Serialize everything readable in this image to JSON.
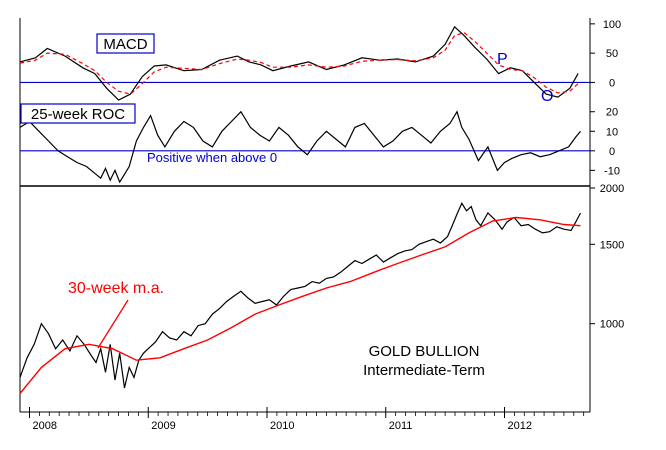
{
  "chart_data": [
    {
      "type": "line",
      "title": "MACD",
      "ylim": [
        -30,
        110
      ],
      "yticks": [
        100,
        50,
        0
      ],
      "zero_line": 0,
      "annotations": [
        "P",
        "O"
      ],
      "series": [
        {
          "name": "MACD",
          "color": "#000000",
          "style": "solid",
          "x": [
            2007.92,
            2008.05,
            2008.15,
            2008.3,
            2008.45,
            2008.55,
            2008.65,
            2008.75,
            2008.85,
            2008.95,
            2009.05,
            2009.15,
            2009.3,
            2009.45,
            2009.6,
            2009.75,
            2009.85,
            2009.95,
            2010.05,
            2010.2,
            2010.35,
            2010.5,
            2010.65,
            2010.8,
            2010.95,
            2011.1,
            2011.25,
            2011.4,
            2011.5,
            2011.58,
            2011.66,
            2011.75,
            2011.85,
            2011.95,
            2012.05,
            2012.15,
            2012.25,
            2012.35,
            2012.45,
            2012.55,
            2012.62
          ],
          "values": [
            35,
            42,
            58,
            45,
            25,
            15,
            -10,
            -30,
            -20,
            10,
            28,
            30,
            20,
            22,
            38,
            45,
            35,
            30,
            20,
            28,
            35,
            22,
            30,
            42,
            38,
            40,
            35,
            45,
            65,
            95,
            80,
            60,
            40,
            15,
            25,
            20,
            0,
            -20,
            -25,
            -10,
            15
          ]
        },
        {
          "name": "Signal",
          "color": "#ff0000",
          "style": "dashed",
          "x": [
            2007.92,
            2008.05,
            2008.15,
            2008.3,
            2008.45,
            2008.55,
            2008.65,
            2008.75,
            2008.85,
            2008.95,
            2009.05,
            2009.15,
            2009.3,
            2009.45,
            2009.6,
            2009.75,
            2009.85,
            2009.95,
            2010.05,
            2010.2,
            2010.35,
            2010.5,
            2010.65,
            2010.8,
            2010.95,
            2011.1,
            2011.25,
            2011.4,
            2011.5,
            2011.58,
            2011.66,
            2011.75,
            2011.85,
            2011.95,
            2012.05,
            2012.15,
            2012.25,
            2012.35,
            2012.45,
            2012.55,
            2012.62
          ],
          "values": [
            33,
            38,
            50,
            48,
            32,
            20,
            0,
            -15,
            -20,
            -2,
            18,
            26,
            24,
            22,
            32,
            40,
            38,
            34,
            26,
            26,
            30,
            26,
            28,
            36,
            38,
            39,
            37,
            42,
            55,
            80,
            85,
            70,
            50,
            30,
            22,
            20,
            8,
            -8,
            -18,
            -15,
            -2
          ]
        }
      ]
    },
    {
      "type": "line",
      "title": "25-week ROC",
      "ylim": [
        -18,
        26
      ],
      "yticks": [
        20,
        10,
        0,
        -10
      ],
      "zero_line": 0,
      "annotations": [
        "Positive when above 0"
      ],
      "series": [
        {
          "name": "25-week ROC",
          "color": "#000000",
          "style": "solid",
          "x": [
            2007.92,
            2008.0,
            2008.08,
            2008.16,
            2008.24,
            2008.32,
            2008.4,
            2008.48,
            2008.56,
            2008.6,
            2008.64,
            2008.68,
            2008.72,
            2008.76,
            2008.8,
            2008.84,
            2008.9,
            2008.96,
            2009.02,
            2009.08,
            2009.14,
            2009.22,
            2009.3,
            2009.38,
            2009.46,
            2009.54,
            2009.62,
            2009.7,
            2009.78,
            2009.86,
            2009.94,
            2010.02,
            2010.1,
            2010.18,
            2010.26,
            2010.34,
            2010.42,
            2010.5,
            2010.58,
            2010.66,
            2010.74,
            2010.82,
            2010.9,
            2010.98,
            2011.06,
            2011.14,
            2011.22,
            2011.3,
            2011.38,
            2011.46,
            2011.54,
            2011.6,
            2011.64,
            2011.7,
            2011.78,
            2011.86,
            2011.94,
            2012.0,
            2012.06,
            2012.14,
            2012.22,
            2012.3,
            2012.38,
            2012.46,
            2012.54,
            2012.6,
            2012.64
          ],
          "values": [
            12,
            15,
            10,
            5,
            0,
            -3,
            -6,
            -8,
            -12,
            -14,
            -9,
            -15,
            -10,
            -16,
            -12,
            -8,
            5,
            12,
            18,
            8,
            2,
            10,
            15,
            12,
            5,
            2,
            10,
            15,
            20,
            12,
            8,
            5,
            12,
            8,
            2,
            -2,
            5,
            10,
            6,
            2,
            12,
            14,
            8,
            2,
            5,
            10,
            12,
            8,
            4,
            10,
            14,
            20,
            12,
            6,
            -5,
            2,
            -10,
            -6,
            -4,
            -2,
            -1,
            -3,
            -2,
            0,
            2,
            7,
            10
          ]
        }
      ]
    },
    {
      "type": "line",
      "title": "GOLD BULLION Intermediate-Term",
      "ylim": [
        650,
        2000
      ],
      "yticks": [
        2000,
        1500,
        1000
      ],
      "xticks": [
        "2008",
        "2009",
        "2010",
        "2011",
        "2012"
      ],
      "annotations": [
        "30-week m.a."
      ],
      "series": [
        {
          "name": "Gold",
          "color": "#000000",
          "style": "solid",
          "x": [
            2007.92,
            2007.98,
            2008.04,
            2008.1,
            2008.16,
            2008.22,
            2008.28,
            2008.34,
            2008.4,
            2008.46,
            2008.52,
            2008.56,
            2008.6,
            2008.64,
            2008.68,
            2008.72,
            2008.76,
            2008.8,
            2008.84,
            2008.88,
            2008.92,
            2008.96,
            2009.0,
            2009.06,
            2009.12,
            2009.18,
            2009.24,
            2009.3,
            2009.36,
            2009.42,
            2009.48,
            2009.54,
            2009.6,
            2009.66,
            2009.72,
            2009.78,
            2009.84,
            2009.9,
            2009.96,
            2010.02,
            2010.08,
            2010.14,
            2010.2,
            2010.26,
            2010.32,
            2010.38,
            2010.44,
            2010.5,
            2010.56,
            2010.62,
            2010.68,
            2010.74,
            2010.8,
            2010.86,
            2010.92,
            2010.98,
            2011.04,
            2011.1,
            2011.16,
            2011.22,
            2011.28,
            2011.34,
            2011.4,
            2011.46,
            2011.52,
            2011.56,
            2011.6,
            2011.64,
            2011.68,
            2011.72,
            2011.76,
            2011.8,
            2011.86,
            2011.92,
            2011.98,
            2012.02,
            2012.08,
            2012.14,
            2012.2,
            2012.26,
            2012.32,
            2012.38,
            2012.44,
            2012.5,
            2012.56,
            2012.6,
            2012.64
          ],
          "values": [
            760,
            840,
            900,
            1000,
            950,
            880,
            920,
            870,
            940,
            900,
            850,
            820,
            880,
            780,
            900,
            750,
            860,
            720,
            800,
            760,
            830,
            860,
            880,
            910,
            960,
            930,
            920,
            960,
            940,
            990,
            1000,
            1050,
            1080,
            1120,
            1150,
            1180,
            1140,
            1110,
            1120,
            1130,
            1100,
            1150,
            1190,
            1200,
            1210,
            1240,
            1230,
            1260,
            1270,
            1300,
            1340,
            1380,
            1360,
            1390,
            1420,
            1370,
            1400,
            1430,
            1450,
            1460,
            1500,
            1520,
            1540,
            1510,
            1560,
            1650,
            1750,
            1850,
            1780,
            1820,
            1700,
            1650,
            1760,
            1700,
            1620,
            1680,
            1720,
            1650,
            1660,
            1620,
            1590,
            1600,
            1640,
            1620,
            1610,
            1680,
            1760
          ]
        },
        {
          "name": "30-week m.a.",
          "color": "#ff0000",
          "style": "solid",
          "x": [
            2007.92,
            2008.1,
            2008.3,
            2008.5,
            2008.7,
            2008.9,
            2009.1,
            2009.3,
            2009.5,
            2009.7,
            2009.9,
            2010.1,
            2010.3,
            2010.5,
            2010.7,
            2010.9,
            2011.1,
            2011.3,
            2011.5,
            2011.7,
            2011.9,
            2012.1,
            2012.3,
            2012.5,
            2012.64
          ],
          "values": [
            700,
            800,
            880,
            900,
            880,
            830,
            840,
            880,
            920,
            980,
            1050,
            1100,
            1150,
            1200,
            1240,
            1300,
            1360,
            1420,
            1480,
            1590,
            1690,
            1720,
            1700,
            1660,
            1650
          ]
        }
      ]
    }
  ],
  "labels": {
    "macd_title": "MACD",
    "roc_title": "25-week ROC",
    "roc_note": "Positive when above 0",
    "peak_label": "P",
    "trough_label": "O",
    "ma_label": "30-week m.a.",
    "subject_line1": "GOLD BULLION",
    "subject_line2": "Intermediate-Term"
  },
  "colors": {
    "price": "#000000",
    "ma": "#ff0000",
    "zero_line": "#0000cc",
    "label_blue": "#0000cc",
    "label_red": "#ff0000"
  }
}
